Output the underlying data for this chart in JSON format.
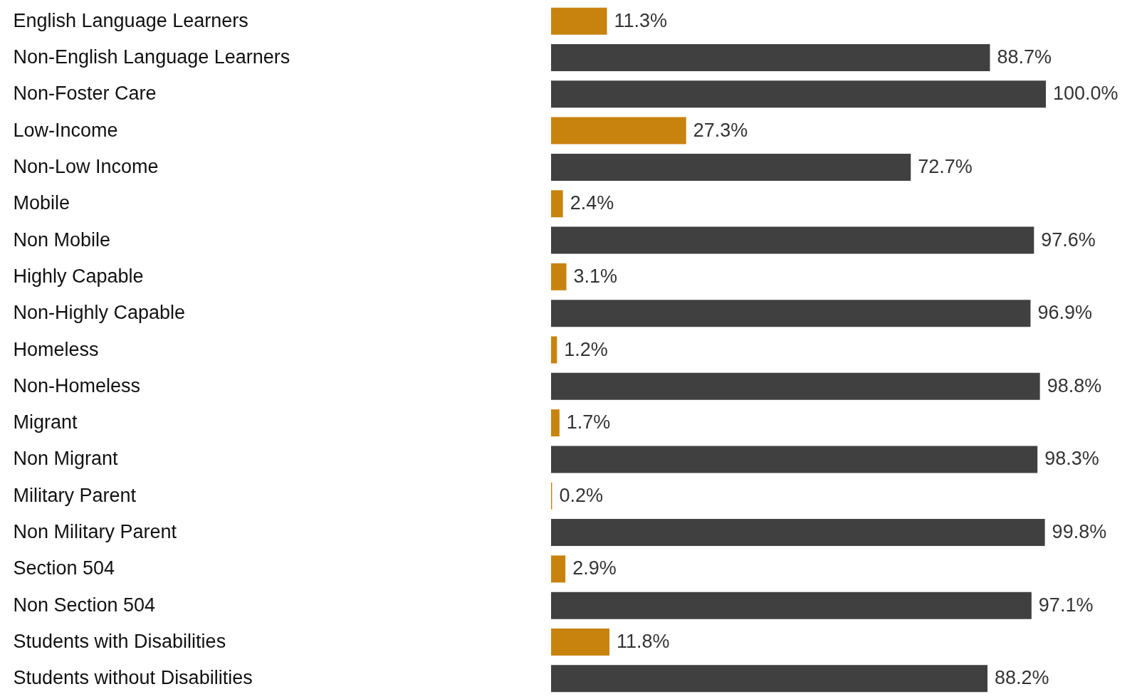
{
  "chart_data": {
    "type": "bar",
    "orientation": "horizontal",
    "categories": [
      "English Language Learners",
      "Non-English Language Learners",
      "Non-Foster Care",
      "Low-Income",
      "Non-Low Income",
      "Mobile",
      "Non Mobile",
      "Highly Capable",
      "Non-Highly Capable",
      "Homeless",
      "Non-Homeless",
      "Migrant",
      "Non Migrant",
      "Military Parent",
      "Non Military Parent",
      "Section 504",
      "Non Section 504",
      "Students with Disabilities",
      "Students without Disabilities"
    ],
    "values": [
      11.3,
      88.7,
      100.0,
      27.3,
      72.7,
      2.4,
      97.6,
      3.1,
      96.9,
      1.2,
      98.8,
      1.7,
      98.3,
      0.2,
      99.8,
      2.9,
      97.1,
      11.8,
      88.2
    ],
    "value_labels": [
      "11.3%",
      "88.7%",
      "100.0%",
      "27.3%",
      "72.7%",
      "2.4%",
      "97.6%",
      "3.1%",
      "96.9%",
      "1.2%",
      "98.8%",
      "1.7%",
      "98.3%",
      "0.2%",
      "99.8%",
      "2.9%",
      "97.1%",
      "11.8%",
      "88.2%"
    ],
    "colors": [
      "#c8830f",
      "#404040",
      "#404040",
      "#c8830f",
      "#404040",
      "#c8830f",
      "#404040",
      "#c8830f",
      "#404040",
      "#c8830f",
      "#404040",
      "#c8830f",
      "#404040",
      "#c8830f",
      "#404040",
      "#c8830f",
      "#404040",
      "#c8830f",
      "#404040"
    ],
    "xlabel": null
  }
}
